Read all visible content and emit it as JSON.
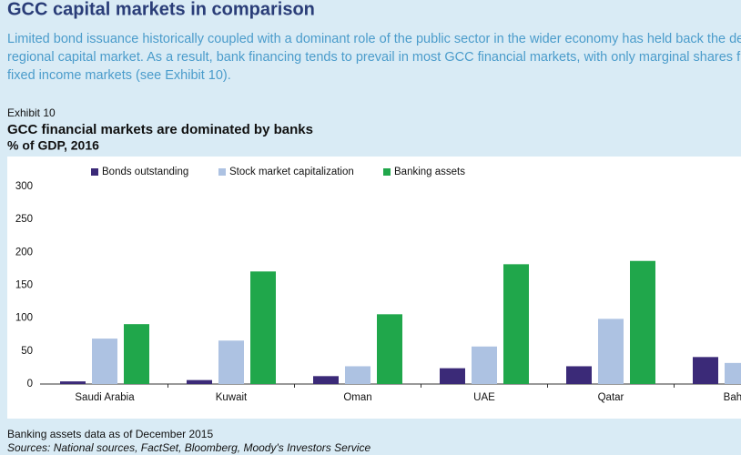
{
  "header": {
    "title": "GCC capital markets in comparison",
    "paragraph": [
      "Limited bond issuance historically coupled with a dominant role of the public sector in the wider economy has held back the develo",
      "regional capital market. As a result, bank financing tends to prevail in most GCC financial markets, with only marginal shares from e",
      "fixed income markets (see Exhibit 10)."
    ]
  },
  "exhibit": "Exhibit 10",
  "chart_data": {
    "type": "bar",
    "title": "GCC financial markets are dominated by banks",
    "subtitle": "% of GDP, 2016",
    "categories": [
      "Saudi Arabia",
      "Kuwait",
      "Oman",
      "UAE",
      "Qatar",
      "Bahra"
    ],
    "series": [
      {
        "name": "Bonds outstanding",
        "color": "#3b2a78",
        "values": [
          4,
          6,
          12,
          24,
          27,
          41
        ]
      },
      {
        "name": "Stock market capitalization",
        "color": "#adc2e2",
        "values": [
          69,
          66,
          27,
          57,
          99,
          32
        ]
      },
      {
        "name": "Banking assets",
        "color": "#20a74b",
        "values": [
          91,
          171,
          106,
          182,
          187,
          null
        ]
      }
    ],
    "ylim": [
      0,
      300
    ],
    "yticks": [
      0,
      50,
      100,
      150,
      200,
      250,
      300
    ],
    "grid": false
  },
  "footnote": "Banking assets data as of December 2015",
  "sources": "Sources: National sources, FactSet, Bloomberg, Moody's Investors Service"
}
